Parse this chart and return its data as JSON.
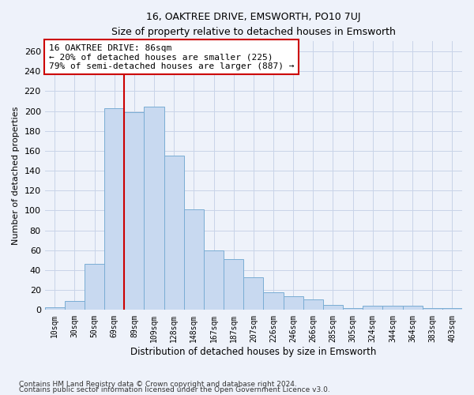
{
  "title": "16, OAKTREE DRIVE, EMSWORTH, PO10 7UJ",
  "subtitle": "Size of property relative to detached houses in Emsworth",
  "xlabel": "Distribution of detached houses by size in Emsworth",
  "ylabel": "Number of detached properties",
  "bar_labels": [
    "10sqm",
    "30sqm",
    "50sqm",
    "69sqm",
    "89sqm",
    "109sqm",
    "128sqm",
    "148sqm",
    "167sqm",
    "187sqm",
    "207sqm",
    "226sqm",
    "246sqm",
    "266sqm",
    "285sqm",
    "305sqm",
    "324sqm",
    "344sqm",
    "364sqm",
    "383sqm",
    "403sqm"
  ],
  "bar_heights": [
    3,
    9,
    46,
    203,
    199,
    204,
    155,
    101,
    60,
    51,
    33,
    18,
    14,
    11,
    5,
    2,
    4,
    4,
    4,
    2,
    2
  ],
  "bar_color": "#c8d9f0",
  "bar_edge_color": "#7aadd4",
  "vline_color": "#cc0000",
  "annotation_text": "16 OAKTREE DRIVE: 86sqm\n← 20% of detached houses are smaller (225)\n79% of semi-detached houses are larger (887) →",
  "annotation_box_color": "#ffffff",
  "annotation_box_edge": "#cc0000",
  "ylim": [
    0,
    270
  ],
  "yticks": [
    0,
    20,
    40,
    60,
    80,
    100,
    120,
    140,
    160,
    180,
    200,
    220,
    240,
    260
  ],
  "grid_color": "#c8d4e8",
  "background_color": "#eef2fa",
  "footnote1": "Contains HM Land Registry data © Crown copyright and database right 2024.",
  "footnote2": "Contains public sector information licensed under the Open Government Licence v3.0."
}
